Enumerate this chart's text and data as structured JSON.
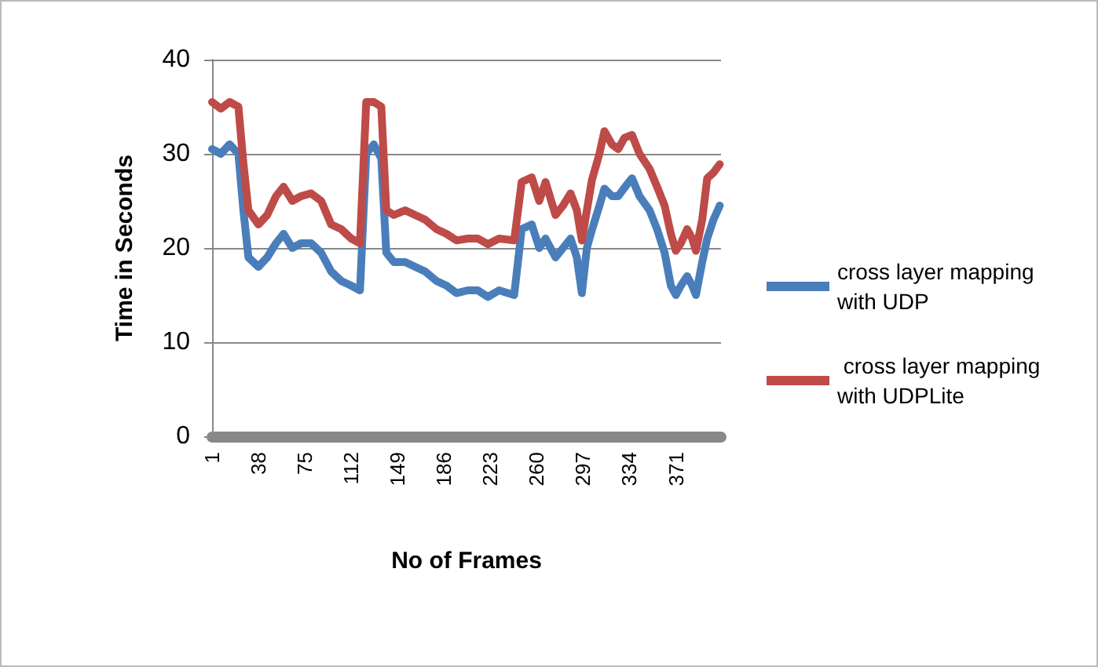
{
  "chart_data": {
    "type": "line",
    "xlabel": "No of Frames",
    "ylabel": "Time in Seconds",
    "x": [
      1,
      8,
      15,
      22,
      26,
      30,
      38,
      45,
      52,
      58,
      65,
      72,
      80,
      88,
      96,
      104,
      112,
      119,
      124,
      130,
      136,
      140,
      146,
      155,
      163,
      171,
      180,
      188,
      196,
      205,
      213,
      221,
      230,
      242,
      248,
      256,
      262,
      267,
      275,
      281,
      287,
      292,
      296,
      300,
      304,
      310,
      314,
      320,
      325,
      330,
      336,
      342,
      350,
      356,
      362,
      367,
      371,
      375,
      380,
      384,
      387,
      392,
      396,
      401,
      406
    ],
    "series": [
      {
        "name": "cross layer mapping with UDP",
        "color": "#4a7ebb",
        "values": [
          30.5,
          30,
          31,
          30,
          24,
          19,
          18,
          19,
          20.5,
          21.5,
          20,
          20.5,
          20.5,
          19.5,
          17.5,
          16.5,
          16,
          15.5,
          30,
          31,
          29.5,
          19.5,
          18.5,
          18.5,
          18,
          17.5,
          16.5,
          16,
          15.2,
          15.5,
          15.5,
          14.8,
          15.5,
          15,
          22,
          22.5,
          20,
          21,
          19,
          20,
          21,
          19,
          15.2,
          20,
          21.9,
          24.5,
          26.3,
          25.5,
          25.5,
          26.4,
          27.4,
          25.5,
          24,
          22,
          19.5,
          16,
          15,
          16,
          17,
          16,
          15,
          18.5,
          21,
          23,
          24.5
        ]
      },
      {
        "name": " cross layer mapping with UDPLite",
        "color": "#be4b48",
        "values": [
          35.5,
          34.8,
          35.5,
          35,
          29,
          24,
          22.5,
          23.5,
          25.5,
          26.5,
          25,
          25.5,
          25.8,
          25,
          22.5,
          22,
          21,
          20.5,
          35.5,
          35.5,
          35,
          24,
          23.5,
          24,
          23.5,
          23,
          22,
          21.5,
          20.8,
          21,
          21,
          20.4,
          21,
          20.8,
          27,
          27.5,
          25,
          27,
          23.5,
          24.5,
          25.8,
          24,
          20.8,
          24,
          27.2,
          30,
          32.4,
          31,
          30.5,
          31.7,
          32,
          30,
          28.4,
          26.5,
          24.5,
          21.5,
          19.7,
          20.5,
          22,
          21,
          19.7,
          23,
          27.4,
          28,
          28.9
        ]
      }
    ],
    "xlim": [
      1,
      407
    ],
    "xticks": [
      1,
      38,
      75,
      112,
      149,
      186,
      223,
      260,
      297,
      334,
      371
    ],
    "ylim": [
      0,
      40
    ],
    "yticks": [
      0,
      10,
      20,
      30,
      40
    ],
    "grid": "y",
    "legend": "right",
    "marker": "none",
    "line_style": "solid"
  }
}
